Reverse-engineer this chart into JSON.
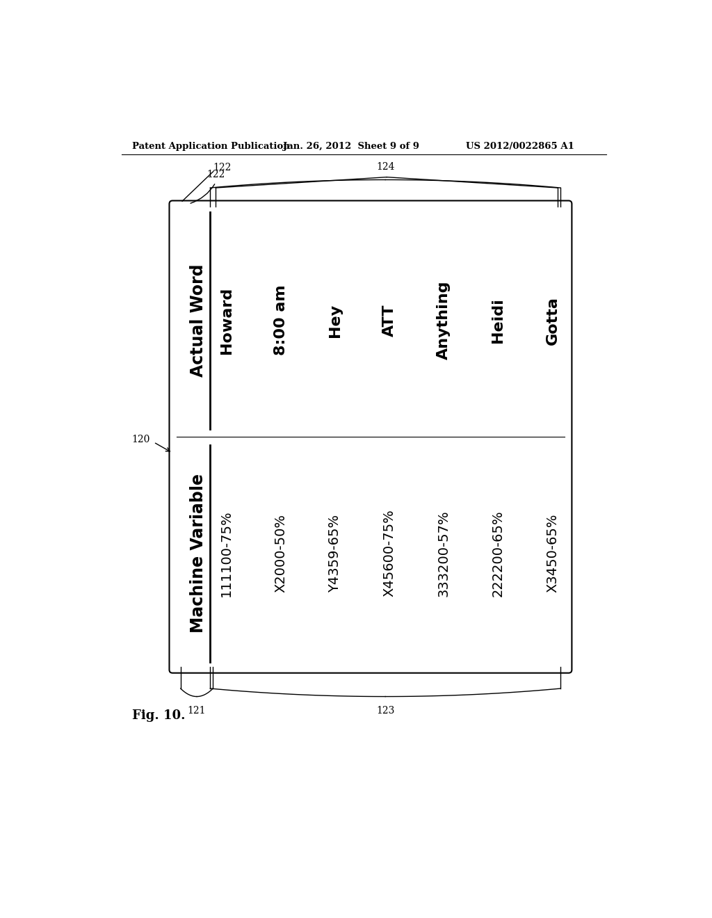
{
  "background_color": "#ffffff",
  "header_text": "Patent Application Publication",
  "header_date": "Jan. 26, 2012  Sheet 9 of 9",
  "header_patent": "US 2012/0022865 A1",
  "fig_label": "Fig. 10.",
  "box_label": "120",
  "label_122": "122",
  "label_123": "123",
  "label_124": "124",
  "label_121": "121",
  "col1_header": "Actual Word",
  "col2_header": "Machine Variable",
  "machine_variables": [
    "111100-75%",
    "X2000-50%",
    "Y4359-65%",
    "X45600-75%",
    "333200-57%",
    "222200-65%",
    "X3450-65%"
  ],
  "actual_words": [
    "Howard",
    "8:00 am",
    "Hey",
    "ATT",
    "Anything",
    "Heidi",
    "Gotta"
  ]
}
